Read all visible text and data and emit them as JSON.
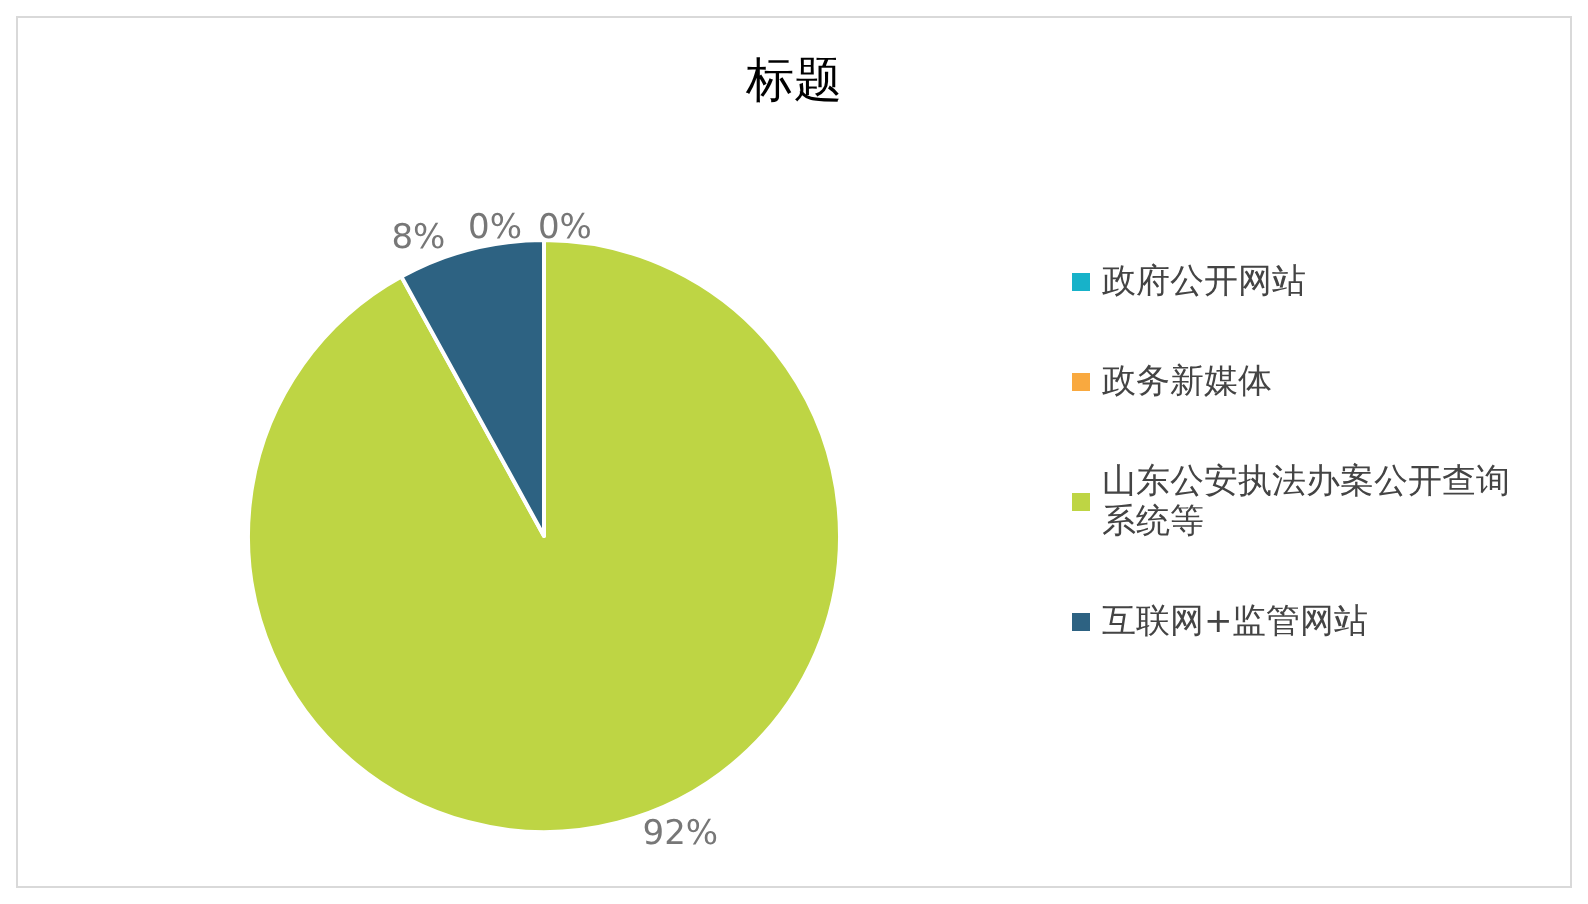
{
  "chart_data": {
    "type": "pie",
    "title": "标题",
    "categories": [
      "政府公开网站",
      "政务新媒体",
      "山东公安执法办案公开查询系统等",
      "互联网+监管网站"
    ],
    "values": [
      0,
      0,
      92,
      8
    ],
    "colors": [
      "#17b2c9",
      "#f9a93f",
      "#bed544",
      "#2d6282"
    ],
    "value_labels": [
      "0%",
      "0%",
      "92%",
      "8%"
    ],
    "legend": "right"
  }
}
